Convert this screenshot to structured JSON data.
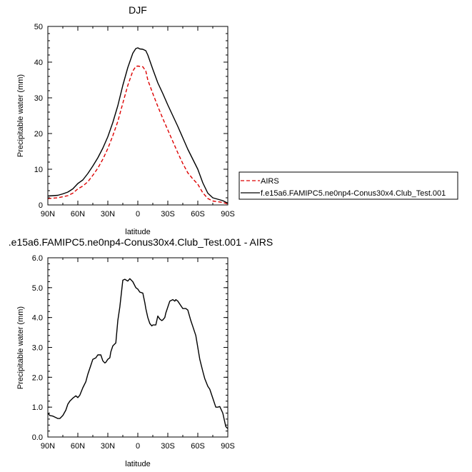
{
  "chart_data": [
    {
      "type": "line",
      "title": "DJF",
      "xlabel": "latitude",
      "ylabel": "Precipitable water (mm)",
      "xlim": [
        90,
        -90
      ],
      "ylim": [
        0,
        50
      ],
      "x_ticks": [
        90,
        60,
        30,
        0,
        -30,
        -60,
        -90
      ],
      "x_tick_labels": [
        "90N",
        "60N",
        "30N",
        "0",
        "30S",
        "60S",
        "90S"
      ],
      "y_ticks": [
        0,
        10,
        20,
        30,
        40,
        50
      ],
      "y_tick_labels": [
        "0",
        "10",
        "20",
        "30",
        "40",
        "50"
      ],
      "legend_position": "right",
      "series": [
        {
          "name": "AIRS",
          "color": "#dd0000",
          "dash": "dashed",
          "x": [
            90,
            85,
            80,
            75,
            70,
            65,
            60,
            55,
            50,
            45,
            40,
            35,
            30,
            25,
            20,
            15,
            10,
            5,
            2,
            0,
            -2,
            -5,
            -8,
            -10,
            -15,
            -20,
            -25,
            -30,
            -35,
            -40,
            -45,
            -50,
            -55,
            -60,
            -65,
            -70,
            -75,
            -80,
            -85,
            -90
          ],
          "y": [
            1.8,
            1.9,
            2.0,
            2.3,
            2.6,
            3.3,
            4.5,
            5.3,
            6.5,
            8.3,
            10.3,
            12.8,
            15.8,
            19.4,
            23.4,
            28.5,
            33.5,
            37.5,
            38.8,
            38.9,
            38.8,
            38.7,
            37.5,
            35.0,
            31.2,
            27.6,
            24.2,
            21.0,
            17.8,
            14.6,
            11.6,
            9.0,
            7.3,
            5.8,
            3.4,
            1.8,
            1.1,
            0.9,
            0.7,
            0.3
          ]
        },
        {
          "name": "f.e15a6.FAMIPC5.ne0np4-Conus30x4.Club_Test.001",
          "color": "#000000",
          "dash": "solid",
          "x": [
            90,
            85,
            80,
            75,
            70,
            65,
            60,
            55,
            50,
            45,
            40,
            35,
            30,
            25,
            20,
            15,
            10,
            5,
            2,
            0,
            -2,
            -5,
            -8,
            -10,
            -15,
            -20,
            -25,
            -30,
            -35,
            -40,
            -45,
            -50,
            -55,
            -60,
            -65,
            -70,
            -75,
            -80,
            -85,
            -90
          ],
          "y": [
            2.5,
            2.6,
            2.7,
            3.1,
            3.6,
            4.5,
            6.0,
            7.0,
            8.8,
            10.9,
            13.2,
            15.9,
            19.1,
            23.1,
            27.8,
            33.5,
            38.5,
            42.5,
            43.8,
            44.0,
            43.7,
            43.6,
            43.2,
            42.0,
            38.0,
            34.2,
            31.2,
            28.0,
            25.0,
            22.0,
            18.8,
            15.6,
            12.8,
            10.0,
            6.2,
            3.3,
            2.0,
            1.6,
            1.2,
            0.5
          ]
        }
      ]
    },
    {
      "type": "line",
      "title": ".e15a6.FAMIPC5.ne0np4-Conus30x4.Club_Test.001 - AIRS",
      "xlabel": "latitude",
      "ylabel": "Precipitable water (mm)",
      "xlim": [
        90,
        -90
      ],
      "ylim": [
        0,
        6
      ],
      "x_ticks": [
        90,
        60,
        30,
        0,
        -30,
        -60,
        -90
      ],
      "x_tick_labels": [
        "90N",
        "60N",
        "30N",
        "0",
        "30S",
        "60S",
        "90S"
      ],
      "y_ticks": [
        0,
        1,
        2,
        3,
        4,
        5,
        6
      ],
      "y_tick_labels": [
        "0.0",
        "1.0",
        "2.0",
        "3.0",
        "4.0",
        "5.0",
        "6.0"
      ],
      "series": [
        {
          "color": "#000000",
          "dash": "solid",
          "x": [
            90,
            88,
            85,
            82,
            80,
            78,
            75,
            72,
            70,
            68,
            65,
            62,
            60,
            58,
            55,
            52,
            50,
            47,
            45,
            42,
            40,
            37,
            35,
            33,
            32,
            30,
            28,
            27,
            25,
            22,
            20,
            18,
            15,
            13,
            10,
            8,
            5,
            2,
            0,
            -2,
            -5,
            -7,
            -8,
            -10,
            -12,
            -14,
            -15,
            -18,
            -20,
            -22,
            -24,
            -25,
            -27,
            -28,
            -30,
            -32,
            -35,
            -37,
            -38,
            -40,
            -45,
            -48,
            -50,
            -53,
            -55,
            -58,
            -60,
            -62,
            -65,
            -67,
            -70,
            -72,
            -75,
            -78,
            -80,
            -82,
            -85,
            -88,
            -90
          ],
          "y": [
            0.8,
            0.72,
            0.7,
            0.65,
            0.62,
            0.62,
            0.72,
            0.9,
            1.1,
            1.2,
            1.3,
            1.38,
            1.32,
            1.4,
            1.65,
            1.85,
            2.1,
            2.4,
            2.6,
            2.65,
            2.75,
            2.75,
            2.55,
            2.48,
            2.5,
            2.6,
            2.65,
            2.85,
            3.05,
            3.15,
            3.9,
            4.35,
            5.25,
            5.28,
            5.22,
            5.3,
            5.2,
            5.0,
            4.95,
            4.85,
            4.82,
            4.5,
            4.3,
            4.0,
            3.8,
            3.72,
            3.75,
            3.75,
            4.05,
            3.95,
            3.9,
            3.92,
            4.0,
            4.15,
            4.35,
            4.55,
            4.6,
            4.55,
            4.6,
            4.55,
            4.3,
            4.3,
            4.25,
            3.9,
            3.7,
            3.4,
            3.0,
            2.6,
            2.2,
            1.95,
            1.7,
            1.6,
            1.3,
            1.0,
            1.0,
            1.02,
            0.8,
            0.35,
            0.28
          ]
        }
      ]
    }
  ]
}
